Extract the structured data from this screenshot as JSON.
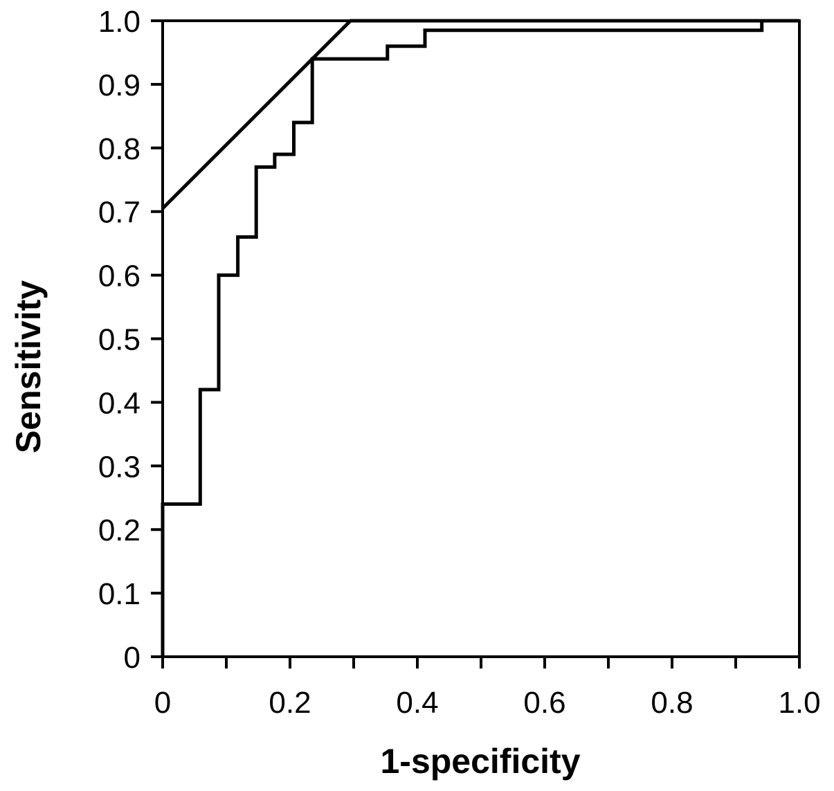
{
  "chart_data": {
    "type": "line",
    "title": "",
    "xlabel": "1-specificity",
    "ylabel": "Sensitivity",
    "xlim": [
      0,
      1
    ],
    "ylim": [
      0,
      1
    ],
    "x_ticks": [
      0,
      0.1,
      0.2,
      0.3,
      0.4,
      0.5,
      0.6,
      0.7,
      0.8,
      0.9,
      1.0
    ],
    "x_tick_labels": [
      "0",
      "0.2",
      "0.4",
      "0.6",
      "0.8",
      "1.0"
    ],
    "x_tick_label_values": [
      0,
      0.2,
      0.4,
      0.6,
      0.8,
      1.0
    ],
    "y_ticks": [
      0,
      0.1,
      0.2,
      0.3,
      0.4,
      0.5,
      0.6,
      0.7,
      0.8,
      0.9,
      1.0
    ],
    "y_tick_labels": [
      "0",
      "0.1",
      "0.2",
      "0.3",
      "0.4",
      "0.5",
      "0.6",
      "0.7",
      "0.8",
      "0.9",
      "1.0"
    ],
    "grid": false,
    "legend": "none",
    "line_color": "#000000",
    "series": [
      {
        "style": "step",
        "x": [
          0,
          0,
          0.059,
          0.059,
          0.088,
          0.088,
          0.118,
          0.118,
          0.147,
          0.147,
          0.176,
          0.176,
          0.206,
          0.206,
          0.235,
          0.235,
          0.353,
          0.353,
          0.412,
          0.412,
          0.941,
          0.941,
          1.0
        ],
        "y": [
          0,
          0.24,
          0.24,
          0.42,
          0.42,
          0.6,
          0.6,
          0.66,
          0.66,
          0.77,
          0.77,
          0.79,
          0.79,
          0.84,
          0.84,
          0.94,
          0.94,
          0.96,
          0.96,
          0.985,
          0.985,
          1.0,
          1.0
        ]
      },
      {
        "style": "straight",
        "x": [
          0,
          0.295,
          1.0
        ],
        "y": [
          0.705,
          1.0,
          1.0
        ]
      }
    ]
  }
}
